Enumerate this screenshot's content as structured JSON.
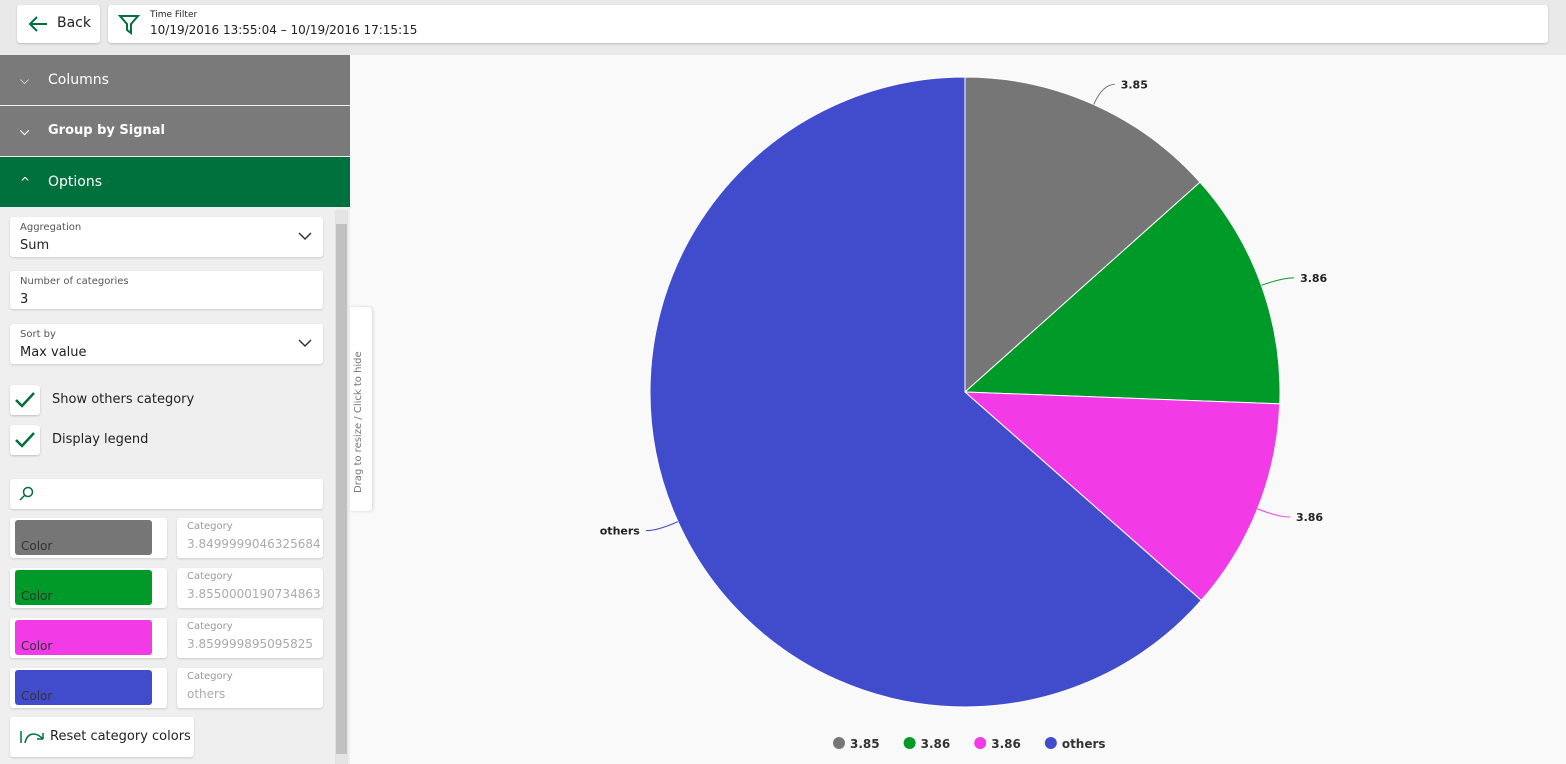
{
  "header": {
    "back": "Back",
    "time_filter_label": "Time Filter",
    "time_filter_value": "10/19/2016 13:55:04 – 10/19/2016 17:15:15"
  },
  "sidebar": {
    "sections": [
      "Columns",
      "Group by Signal",
      "Options"
    ],
    "fields": [
      {
        "label": "Aggregation",
        "value": "Sum"
      },
      {
        "label": "Number of categories",
        "value": "3"
      },
      {
        "label": "Sort by",
        "value": "Max value"
      }
    ],
    "checkboxes": [
      "Show others category",
      "Display legend"
    ],
    "category_colors": [
      {
        "color_label": "Color",
        "category_label": "Category",
        "category": "3.8499999046325684"
      },
      {
        "color_label": "Color",
        "category_label": "Category",
        "category": "3.8550000190734863"
      },
      {
        "color_label": "Color",
        "category_label": "Category",
        "category": "3.859999895095825"
      },
      {
        "color_label": "Color",
        "category_label": "Category",
        "category": "others"
      }
    ],
    "reset": "Reset category colors"
  },
  "resize_handle": "Drag to resize / Click to hide",
  "chart_data": {
    "type": "pie",
    "categories": [
      "3.85",
      "3.86",
      "3.86",
      "others"
    ],
    "values": [
      13.4,
      12.2,
      10.9,
      63.5
    ],
    "colors": [
      "#767676",
      "#009a28",
      "#f23ae6",
      "#414ccc"
    ],
    "legend": "bottom"
  }
}
